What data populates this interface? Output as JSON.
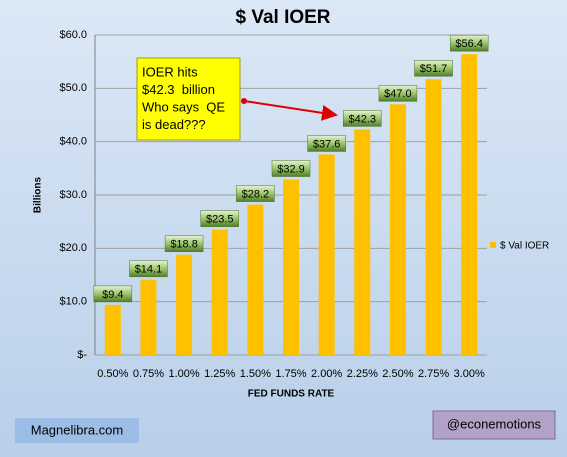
{
  "chart_data": {
    "type": "bar",
    "title": "$ Val IOER",
    "x_label": "FED FUNDS RATE",
    "y_label": "Billions",
    "categories": [
      "0.50%",
      "0.75%",
      "1.00%",
      "1.25%",
      "1.50%",
      "1.75%",
      "2.00%",
      "2.25%",
      "2.50%",
      "2.75%",
      "3.00%"
    ],
    "series": [
      {
        "name": "$ Val IOER",
        "color": "#FFC000",
        "values": [
          9.4,
          14.1,
          18.8,
          23.5,
          28.2,
          32.9,
          37.6,
          42.3,
          47.0,
          51.7,
          56.4
        ],
        "value_labels": [
          "$9.4",
          "$14.1",
          "$18.8",
          "$23.5",
          "$28.2",
          "$32.9",
          "$37.6",
          "$42.3",
          "$47.0",
          "$51.7",
          "$56.4"
        ]
      }
    ],
    "ylim": [
      0,
      60
    ],
    "yticks": [
      {
        "value": 0,
        "label": "$-"
      },
      {
        "value": 10,
        "label": "$10.0"
      },
      {
        "value": 20,
        "label": "$20.0"
      },
      {
        "value": 30,
        "label": "$30.0"
      },
      {
        "value": 40,
        "label": "$40.0"
      },
      {
        "value": 50,
        "label": "$50.0"
      },
      {
        "value": 60,
        "label": "$60.0"
      }
    ],
    "grid": true,
    "legend": "right",
    "annotation": [
      "IOER hits",
      "$42.3  billion",
      "Who says  QE",
      "is dead???"
    ]
  },
  "footer": {
    "left": "Magnelibra.com",
    "right": "@econemotions"
  }
}
